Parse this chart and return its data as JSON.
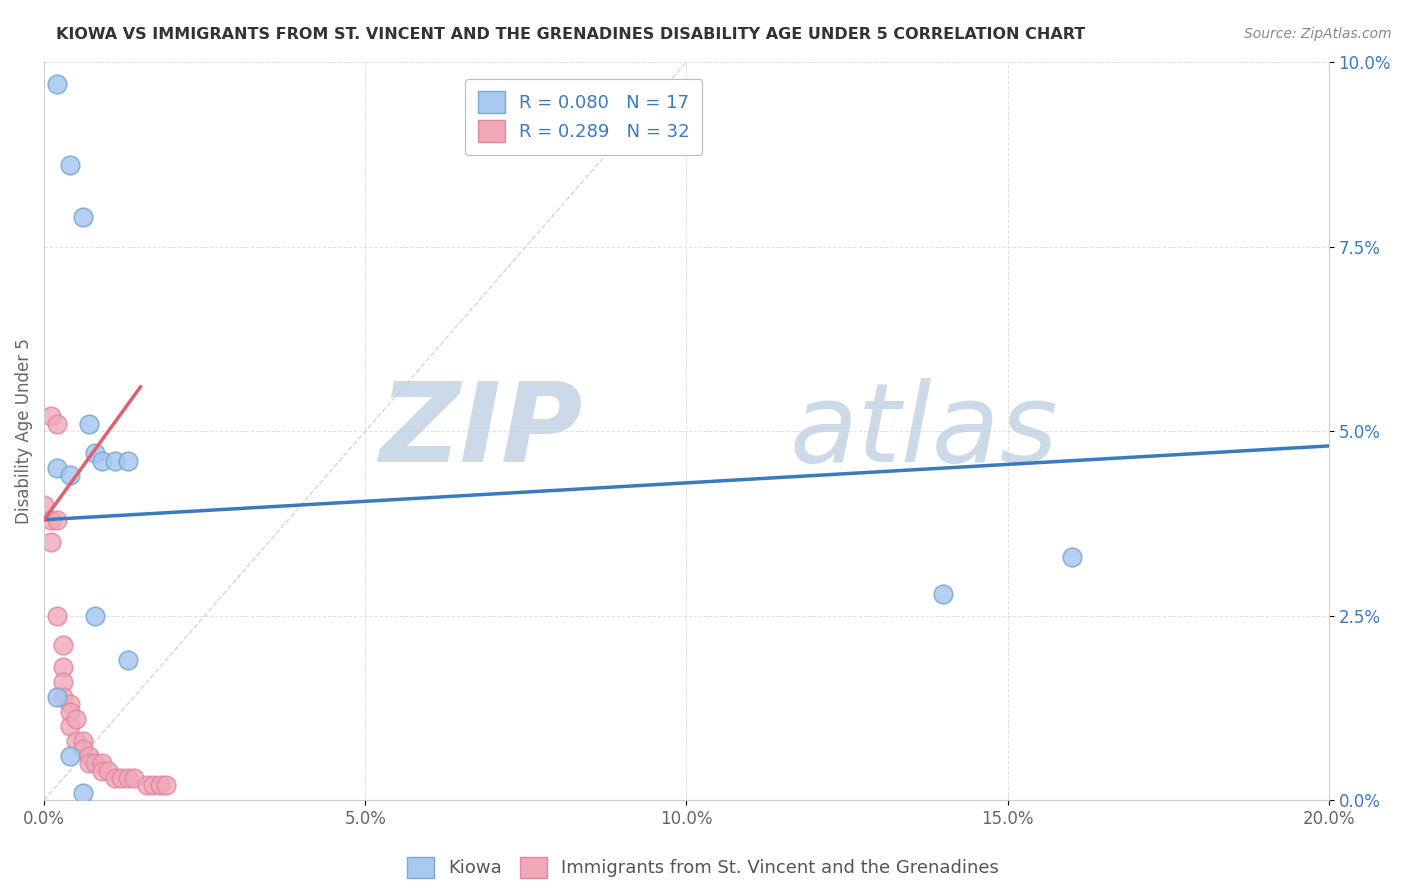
{
  "title": "KIOWA VS IMMIGRANTS FROM ST. VINCENT AND THE GRENADINES DISABILITY AGE UNDER 5 CORRELATION CHART",
  "source": "Source: ZipAtlas.com",
  "ylabel": "Disability Age Under 5",
  "xlim": [
    0.0,
    0.2
  ],
  "ylim": [
    0.0,
    0.1
  ],
  "xticks": [
    0.0,
    0.05,
    0.1,
    0.15,
    0.2
  ],
  "xtick_labels": [
    "0.0%",
    "5.0%",
    "10.0%",
    "15.0%",
    "20.0%"
  ],
  "yticks": [
    0.0,
    0.025,
    0.05,
    0.075,
    0.1
  ],
  "ytick_labels": [
    "0.0%",
    "2.5%",
    "5.0%",
    "7.5%",
    "10.0%"
  ],
  "kiowa_x": [
    0.002,
    0.004,
    0.006,
    0.007,
    0.008,
    0.009,
    0.011,
    0.013,
    0.002,
    0.004,
    0.008,
    0.013,
    0.16,
    0.14,
    0.002,
    0.004,
    0.006
  ],
  "kiowa_y": [
    0.097,
    0.086,
    0.079,
    0.051,
    0.047,
    0.046,
    0.046,
    0.046,
    0.045,
    0.044,
    0.025,
    0.019,
    0.033,
    0.028,
    0.014,
    0.006,
    0.001
  ],
  "svg_x": [
    0.0,
    0.001,
    0.001,
    0.001,
    0.002,
    0.002,
    0.002,
    0.003,
    0.003,
    0.003,
    0.003,
    0.004,
    0.004,
    0.004,
    0.005,
    0.005,
    0.006,
    0.006,
    0.007,
    0.007,
    0.008,
    0.009,
    0.009,
    0.01,
    0.011,
    0.012,
    0.013,
    0.014,
    0.016,
    0.017,
    0.018,
    0.019
  ],
  "svg_y": [
    0.04,
    0.052,
    0.038,
    0.035,
    0.051,
    0.038,
    0.025,
    0.021,
    0.018,
    0.016,
    0.014,
    0.013,
    0.012,
    0.01,
    0.011,
    0.008,
    0.008,
    0.007,
    0.006,
    0.005,
    0.005,
    0.005,
    0.004,
    0.004,
    0.003,
    0.003,
    0.003,
    0.003,
    0.002,
    0.002,
    0.002,
    0.002
  ],
  "kiowa_color": "#a8c8f0",
  "kiowa_edge": "#7aaad0",
  "svg_color": "#f0a8b8",
  "svg_edge": "#e088a0",
  "kiowa_R": 0.08,
  "kiowa_N": 17,
  "svg_R": 0.289,
  "svg_N": 32,
  "trend_blue": [
    0.0,
    0.038,
    0.2,
    0.048
  ],
  "trend_pink": [
    0.0,
    0.038,
    0.015,
    0.056
  ],
  "diag_line": [
    0.0,
    0.0,
    0.1,
    0.1
  ],
  "watermark_zip": "ZIP",
  "watermark_atlas": "atlas",
  "watermark_color": "#ccd9e8",
  "background_color": "#ffffff",
  "grid_color": "#cccccc",
  "trend_blue_color": "#3a7abf",
  "trend_pink_color": "#e06070",
  "title_color": "#333333",
  "ylabel_color": "#666666",
  "ytick_color": "#3a7abf",
  "xtick_color": "#666666",
  "source_color": "#888888",
  "legend_label_color": "#3a7abf"
}
